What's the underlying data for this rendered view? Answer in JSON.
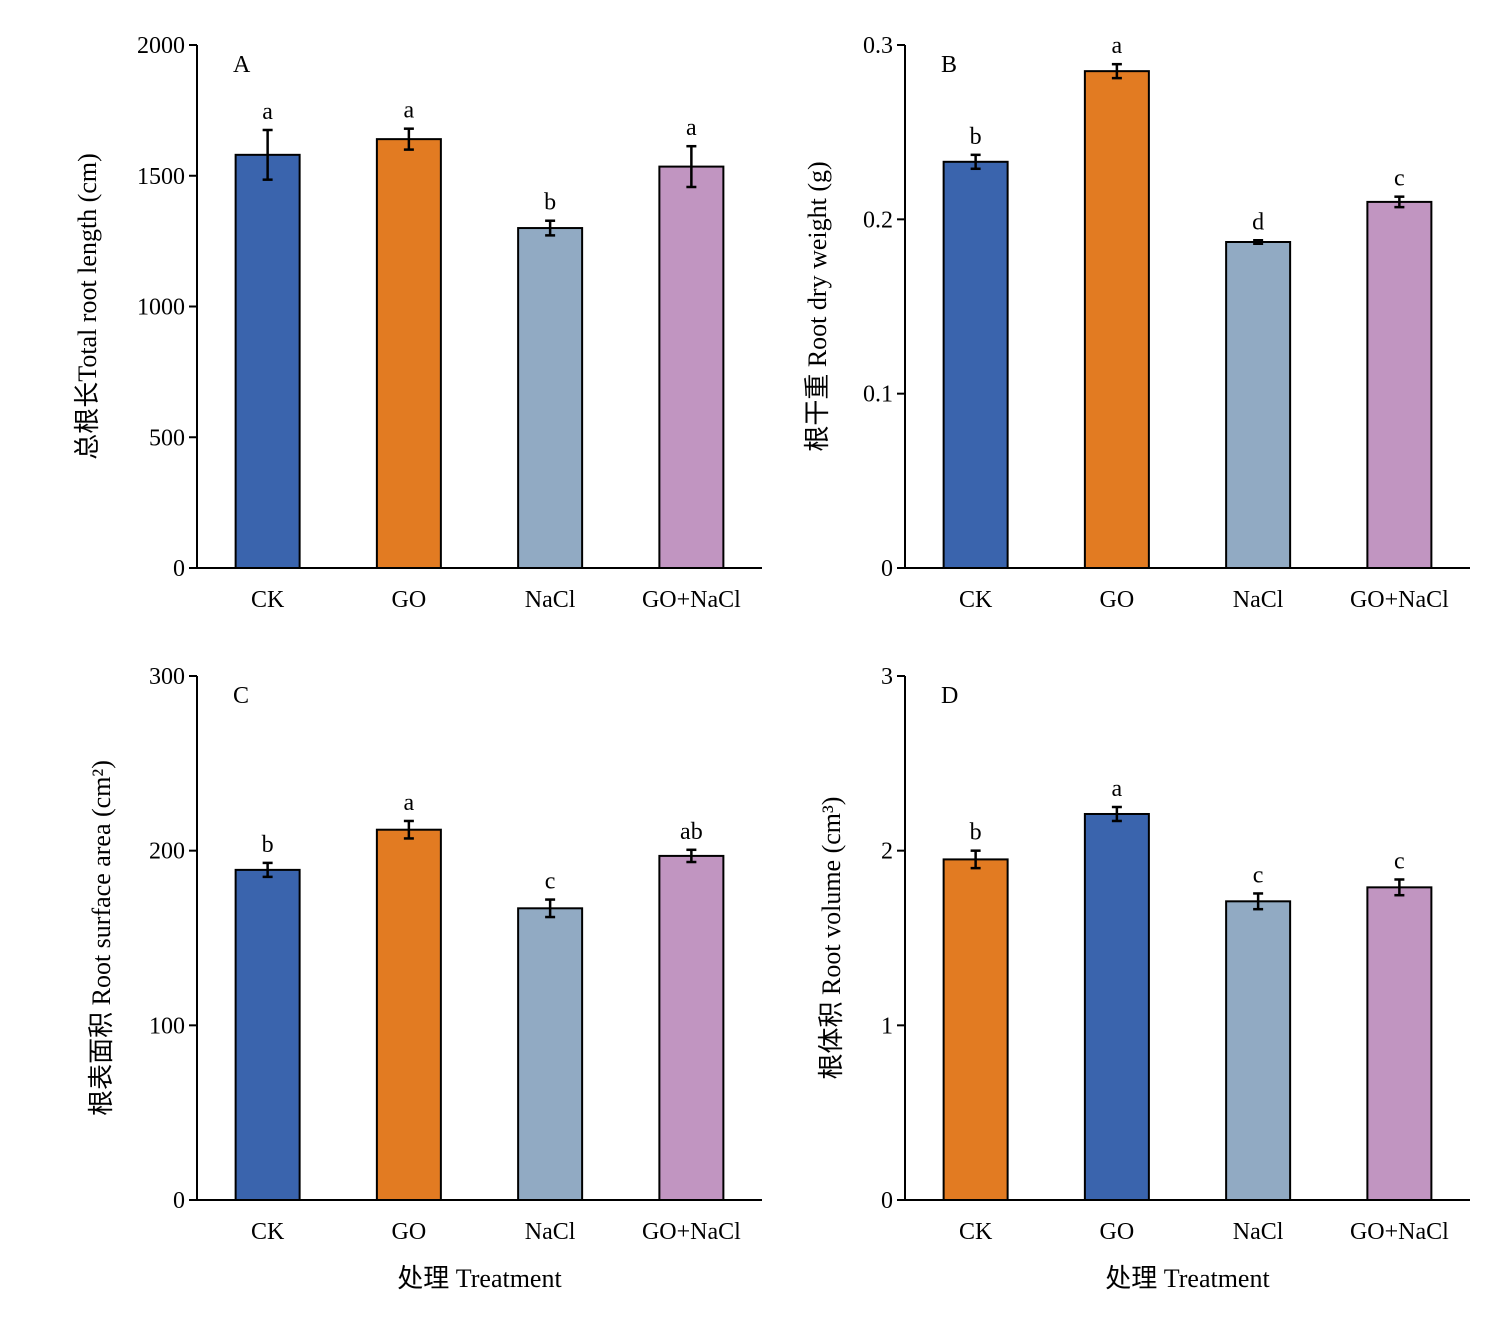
{
  "x_axis_title": "处理 Treatment",
  "chart_data": [
    {
      "type": "bar",
      "panel": "A",
      "ylabel": "总根长Total root length (cm)",
      "ylim": [
        0,
        2000
      ],
      "yticks": [
        "0",
        "500",
        "1000",
        "1500",
        "2000"
      ],
      "categories": [
        "CK",
        "GO",
        "NaCl",
        "GO+NaCl"
      ],
      "values": [
        1580,
        1640,
        1300,
        1535
      ],
      "errors": [
        95,
        40,
        28,
        78
      ],
      "significance": [
        "a",
        "a",
        "b",
        "a"
      ],
      "colors": [
        "#3a64ad",
        "#e27b22",
        "#91aac3",
        "#c195c1"
      ],
      "xtitle": ""
    },
    {
      "type": "bar",
      "panel": "B",
      "ylabel": "根干重 Root dry weight (g)",
      "ylim": [
        0,
        0.3
      ],
      "yticks": [
        "0",
        "0.1",
        "0.2",
        "0.3"
      ],
      "categories": [
        "CK",
        "GO",
        "NaCl",
        "GO+NaCl"
      ],
      "values": [
        0.233,
        0.285,
        0.187,
        0.21
      ],
      "errors": [
        0.004,
        0.004,
        0.001,
        0.003
      ],
      "significance": [
        "b",
        "a",
        "d",
        "c"
      ],
      "colors": [
        "#3a64ad",
        "#e27b22",
        "#91aac3",
        "#c195c1"
      ],
      "xtitle": ""
    },
    {
      "type": "bar",
      "panel": "C",
      "ylabel": "根表面积 Root surface area (cm²)",
      "ylim": [
        0,
        300
      ],
      "yticks": [
        "0",
        "100",
        "200",
        "300"
      ],
      "categories": [
        "CK",
        "GO",
        "NaCl",
        "GO+NaCl"
      ],
      "values": [
        189,
        212,
        167,
        197
      ],
      "errors": [
        4,
        5,
        5,
        3.5
      ],
      "significance": [
        "b",
        "a",
        "c",
        "ab"
      ],
      "colors": [
        "#3a64ad",
        "#e27b22",
        "#91aac3",
        "#c195c1"
      ],
      "xtitle": "处理 Treatment"
    },
    {
      "type": "bar",
      "panel": "D",
      "ylabel": "根体积 Root volume (cm³)",
      "ylim": [
        0,
        3
      ],
      "yticks": [
        "0",
        "1",
        "2",
        "3"
      ],
      "categories": [
        "CK",
        "GO",
        "NaCl",
        "GO+NaCl"
      ],
      "values": [
        1.95,
        2.21,
        1.71,
        1.79
      ],
      "errors": [
        0.05,
        0.04,
        0.045,
        0.045
      ],
      "significance": [
        "b",
        "a",
        "c",
        "c"
      ],
      "colors": [
        "#e27b22",
        "#3a64ad",
        "#91aac3",
        "#c195c1"
      ],
      "xtitle": "处理 Treatment"
    }
  ]
}
